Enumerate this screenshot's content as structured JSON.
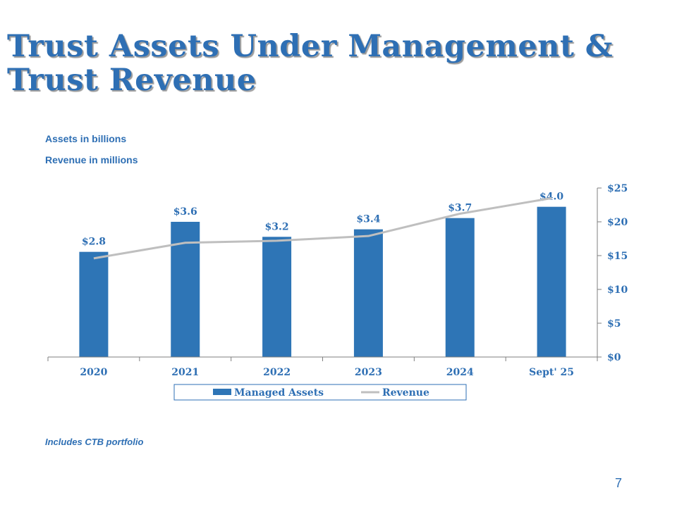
{
  "title": {
    "line1": "Trust Assets Under Management &",
    "line2": "Trust Revenue"
  },
  "notes": {
    "assets_unit": "Assets in billions",
    "revenue_unit": "Revenue in millions"
  },
  "footnote": "Includes CTB portfolio",
  "page_number": "7",
  "colors": {
    "title": "#2E6FB4",
    "bar": "#2E75B6",
    "line": "#BFBFBF",
    "text": "#2E6FB4",
    "axis": "#7F7F7F"
  },
  "chart_data": {
    "type": "bar",
    "categories": [
      "2020",
      "2021",
      "2022",
      "2023",
      "2024",
      "Sept' 25"
    ],
    "series": [
      {
        "name": "Managed Assets",
        "kind": "bar",
        "axis": "left",
        "values": [
          2.8,
          3.6,
          3.2,
          3.4,
          3.7,
          4.0
        ],
        "labels": [
          "$2.8",
          "$3.6",
          "$3.2",
          "$3.4",
          "$3.7",
          "$4.0"
        ]
      },
      {
        "name": "Revenue",
        "kind": "line",
        "axis": "right",
        "values": [
          14.6,
          16.9,
          17.2,
          17.9,
          21.2,
          23.5
        ]
      }
    ],
    "left_axis": {
      "label": "Assets in billions",
      "ylim": [
        0,
        4.5
      ],
      "visible": false
    },
    "right_axis": {
      "label": "Revenue in millions",
      "ylim": [
        0,
        25
      ],
      "ticks": [
        0,
        5,
        10,
        15,
        20,
        25
      ],
      "tick_labels": [
        "$0",
        "$5",
        "$10",
        "$15",
        "$20",
        "$25"
      ]
    },
    "legend": {
      "position": "bottom",
      "entries": [
        "Managed Assets",
        "Revenue"
      ]
    },
    "grid": false
  }
}
